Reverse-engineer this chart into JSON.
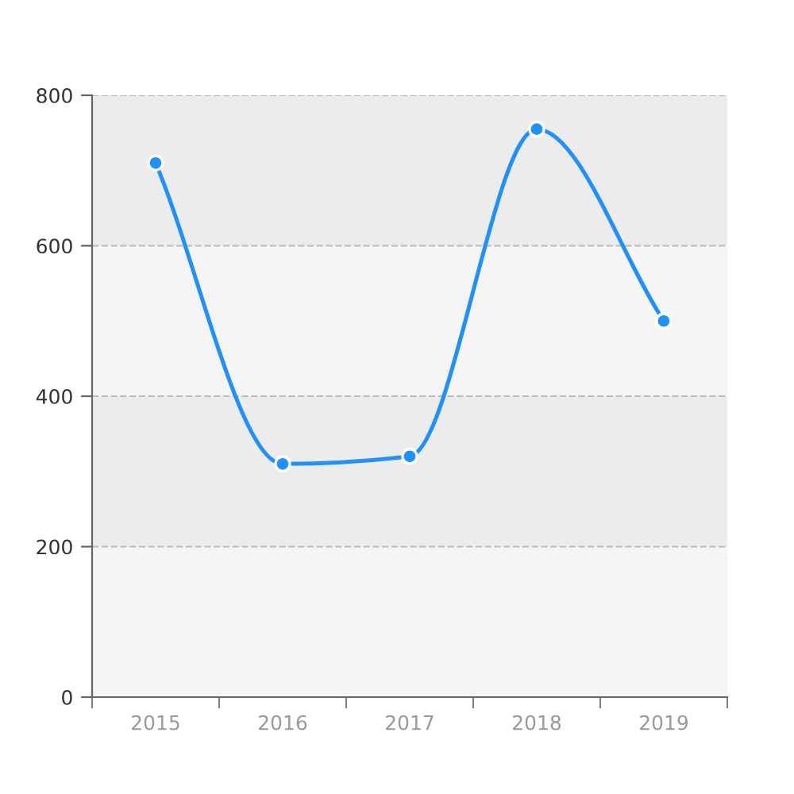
{
  "chart_data": {
    "type": "line",
    "categories": [
      "2015",
      "2016",
      "2017",
      "2018",
      "2019"
    ],
    "series": [
      {
        "color": "#1e90ff",
        "values": [
          710,
          310,
          320,
          755,
          500
        ]
      }
    ],
    "ylim": [
      0,
      800
    ],
    "yticks": [
      0,
      200,
      400,
      600,
      800
    ],
    "grid": "y",
    "marker": "circle",
    "line_style": "solid",
    "bands": [
      {
        "axis": "y",
        "from": 0,
        "to": 200,
        "color": "#f5f5f5"
      },
      {
        "axis": "y",
        "from": 200,
        "to": 400,
        "color": "#ececec"
      },
      {
        "axis": "y",
        "from": 400,
        "to": 600,
        "color": "#f5f5f5"
      },
      {
        "axis": "y",
        "from": 600,
        "to": 800,
        "color": "#ececec"
      }
    ]
  }
}
